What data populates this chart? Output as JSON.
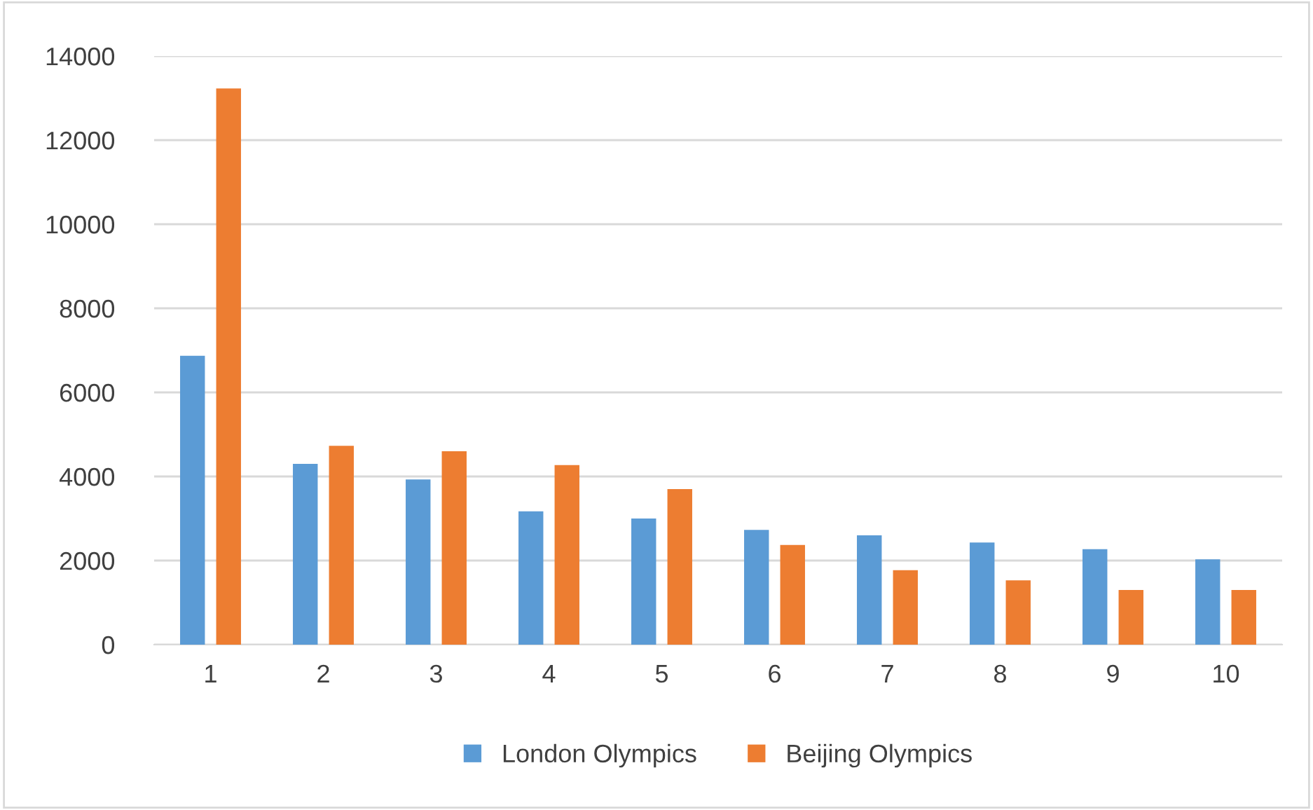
{
  "chart_data": {
    "type": "bar",
    "categories": [
      "1",
      "2",
      "3",
      "4",
      "5",
      "6",
      "7",
      "8",
      "9",
      "10"
    ],
    "series": [
      {
        "name": "London Olympics",
        "color": "#5b9bd5",
        "values": [
          6870,
          4300,
          3930,
          3170,
          3000,
          2730,
          2600,
          2430,
          2270,
          2030
        ]
      },
      {
        "name": "Beijing Olympics",
        "color": "#ed7d31",
        "values": [
          13230,
          4730,
          4600,
          4270,
          3700,
          2370,
          1770,
          1530,
          1300,
          1300
        ]
      }
    ],
    "ylim": [
      0,
      14000
    ],
    "yticks": [
      0,
      2000,
      4000,
      6000,
      8000,
      10000,
      12000,
      14000
    ],
    "grid": "y",
    "legend": "bottom"
  }
}
